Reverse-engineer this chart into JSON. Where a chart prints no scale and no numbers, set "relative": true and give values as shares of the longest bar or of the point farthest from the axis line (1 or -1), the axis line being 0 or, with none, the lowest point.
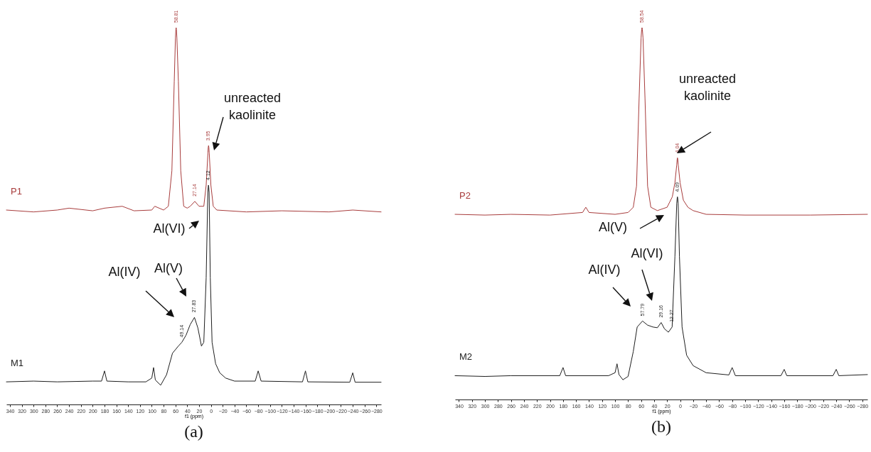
{
  "chart_data": [
    {
      "type": "line",
      "title": "(a)",
      "xlabel": "f1 (ppm)",
      "relative": true,
      "xlim": [
        346,
        -288
      ],
      "xticks": [
        340,
        320,
        300,
        280,
        260,
        240,
        220,
        200,
        180,
        160,
        140,
        120,
        100,
        80,
        60,
        40,
        20,
        0,
        -20,
        -40,
        -60,
        -80,
        -100,
        -120,
        -140,
        -160,
        -180,
        -200,
        -220,
        -240,
        -260,
        -280
      ],
      "series": [
        {
          "name": "P1",
          "color": "#a83c3c",
          "x": [
            346,
            300,
            260,
            240,
            200,
            180,
            150,
            130,
            100,
            95,
            80,
            72,
            66,
            62,
            60,
            59.3,
            58.81,
            58.3,
            57.5,
            55,
            51,
            46,
            40,
            35,
            27.14,
            20,
            12,
            8,
            5,
            4.5,
            3.95,
            3.4,
            2.8,
            0,
            -4,
            -10,
            -60,
            -120,
            -200,
            -240,
            -288
          ],
          "values": [
            0.516,
            0.511,
            0.516,
            0.521,
            0.514,
            0.521,
            0.526,
            0.514,
            0.516,
            0.526,
            0.516,
            0.526,
            0.62,
            0.858,
            0.972,
            0.995,
            1.0,
            0.995,
            0.972,
            0.858,
            0.62,
            0.526,
            0.521,
            0.526,
            0.539,
            0.526,
            0.526,
            0.582,
            0.668,
            0.682,
            0.687,
            0.682,
            0.668,
            0.582,
            0.526,
            0.516,
            0.511,
            0.514,
            0.511,
            0.516,
            0.511
          ]
        },
        {
          "name": "M1",
          "color": "#1e1e1e",
          "x": [
            346,
            300,
            260,
            200,
            185,
            180,
            176,
            140,
            110,
            100,
            97,
            94,
            85,
            75,
            65,
            55,
            49.14,
            42,
            35,
            27.83,
            22,
            16,
            12,
            8,
            5.2,
            4.6,
            4.12,
            3.6,
            3,
            1,
            -2,
            -8,
            -15,
            -25,
            -40,
            -75,
            -80,
            -85,
            -155,
            -160,
            -164,
            -235,
            -240,
            -244,
            -288
          ],
          "values": [
            0.06,
            0.062,
            0.06,
            0.062,
            0.062,
            0.089,
            0.062,
            0.06,
            0.06,
            0.07,
            0.098,
            0.065,
            0.051,
            0.079,
            0.136,
            0.155,
            0.165,
            0.184,
            0.212,
            0.231,
            0.203,
            0.155,
            0.165,
            0.336,
            0.563,
            0.577,
            0.582,
            0.577,
            0.563,
            0.336,
            0.165,
            0.108,
            0.084,
            0.07,
            0.062,
            0.062,
            0.089,
            0.062,
            0.06,
            0.089,
            0.06,
            0.059,
            0.084,
            0.059,
            0.059
          ]
        }
      ],
      "annotations": [
        {
          "text": "58.81",
          "x": 58.81,
          "y": 1.0
        },
        {
          "text": "27.14",
          "x": 27.14,
          "y": 0.539
        },
        {
          "text": "3.95",
          "x": 3.95,
          "y": 0.687
        },
        {
          "text": "49.14",
          "x": 49.14,
          "y": 0.165
        },
        {
          "text": "27.83",
          "x": 27.83,
          "y": 0.231
        },
        {
          "text": "4.12",
          "x": 4.12,
          "y": 0.582
        },
        "Al(IV)",
        "Al(V)",
        "Al(VI)",
        "unreacted kaolinite"
      ]
    },
    {
      "type": "line",
      "title": "(b)",
      "xlabel": "f1 (ppm)",
      "relative": true,
      "xlim": [
        346,
        -288
      ],
      "xticks": [
        340,
        320,
        300,
        280,
        260,
        240,
        220,
        200,
        180,
        160,
        140,
        120,
        100,
        80,
        60,
        40,
        20,
        0,
        -20,
        -40,
        -60,
        -80,
        -100,
        -120,
        -140,
        -160,
        -180,
        -200,
        -220,
        -240,
        -260,
        -280
      ],
      "series": [
        {
          "name": "P2",
          "color": "#a83c3c",
          "x": [
            346,
            300,
            260,
            200,
            150,
            145,
            140,
            100,
            80,
            72,
            67,
            63,
            60,
            59.1,
            58.54,
            58,
            57,
            54,
            50,
            45,
            35,
            20,
            12,
            8,
            5.2,
            4.6,
            4.04,
            3.5,
            2.9,
            0,
            -5,
            -12,
            -20,
            -40,
            -100,
            -200,
            -288
          ],
          "values": [
            0.498,
            0.496,
            0.498,
            0.496,
            0.503,
            0.517,
            0.503,
            0.498,
            0.503,
            0.517,
            0.574,
            0.811,
            0.972,
            0.995,
            1.0,
            0.995,
            0.972,
            0.811,
            0.574,
            0.517,
            0.508,
            0.517,
            0.545,
            0.583,
            0.631,
            0.645,
            0.65,
            0.645,
            0.631,
            0.583,
            0.536,
            0.517,
            0.508,
            0.498,
            0.496,
            0.496,
            0.498
          ]
        },
        {
          "name": "M2",
          "color": "#1e1e1e",
          "x": [
            346,
            300,
            260,
            185,
            180,
            176,
            110,
            100,
            97,
            94,
            88,
            80,
            72,
            66,
            57.79,
            50,
            42,
            35,
            29.16,
            24,
            18,
            12.27,
            8,
            5.2,
            4.6,
            4.09,
            3.6,
            3,
            1,
            -3,
            -10,
            -20,
            -40,
            -75,
            -80,
            -85,
            -155,
            -160,
            -164,
            -235,
            -240,
            -244,
            -288
          ],
          "values": [
            0.064,
            0.062,
            0.064,
            0.064,
            0.086,
            0.064,
            0.064,
            0.072,
            0.096,
            0.067,
            0.053,
            0.062,
            0.129,
            0.195,
            0.211,
            0.2,
            0.195,
            0.193,
            0.207,
            0.19,
            0.181,
            0.195,
            0.384,
            0.527,
            0.54,
            0.545,
            0.54,
            0.527,
            0.384,
            0.195,
            0.119,
            0.091,
            0.072,
            0.066,
            0.086,
            0.064,
            0.064,
            0.081,
            0.064,
            0.064,
            0.081,
            0.064,
            0.067
          ]
        }
      ],
      "annotations": [
        {
          "text": "58.54",
          "x": 58.54,
          "y": 1.0
        },
        {
          "text": "4.04",
          "x": 4.04,
          "y": 0.65
        },
        {
          "text": "57.79",
          "x": 57.79,
          "y": 0.211
        },
        {
          "text": "29.16",
          "x": 29.16,
          "y": 0.207
        },
        {
          "text": "12.27",
          "x": 12.27,
          "y": 0.195
        },
        {
          "text": "4.09",
          "x": 4.09,
          "y": 0.545
        },
        "Al(V)",
        "Al(VI)",
        "Al(IV)",
        "unreacted kaolinite"
      ]
    }
  ]
}
